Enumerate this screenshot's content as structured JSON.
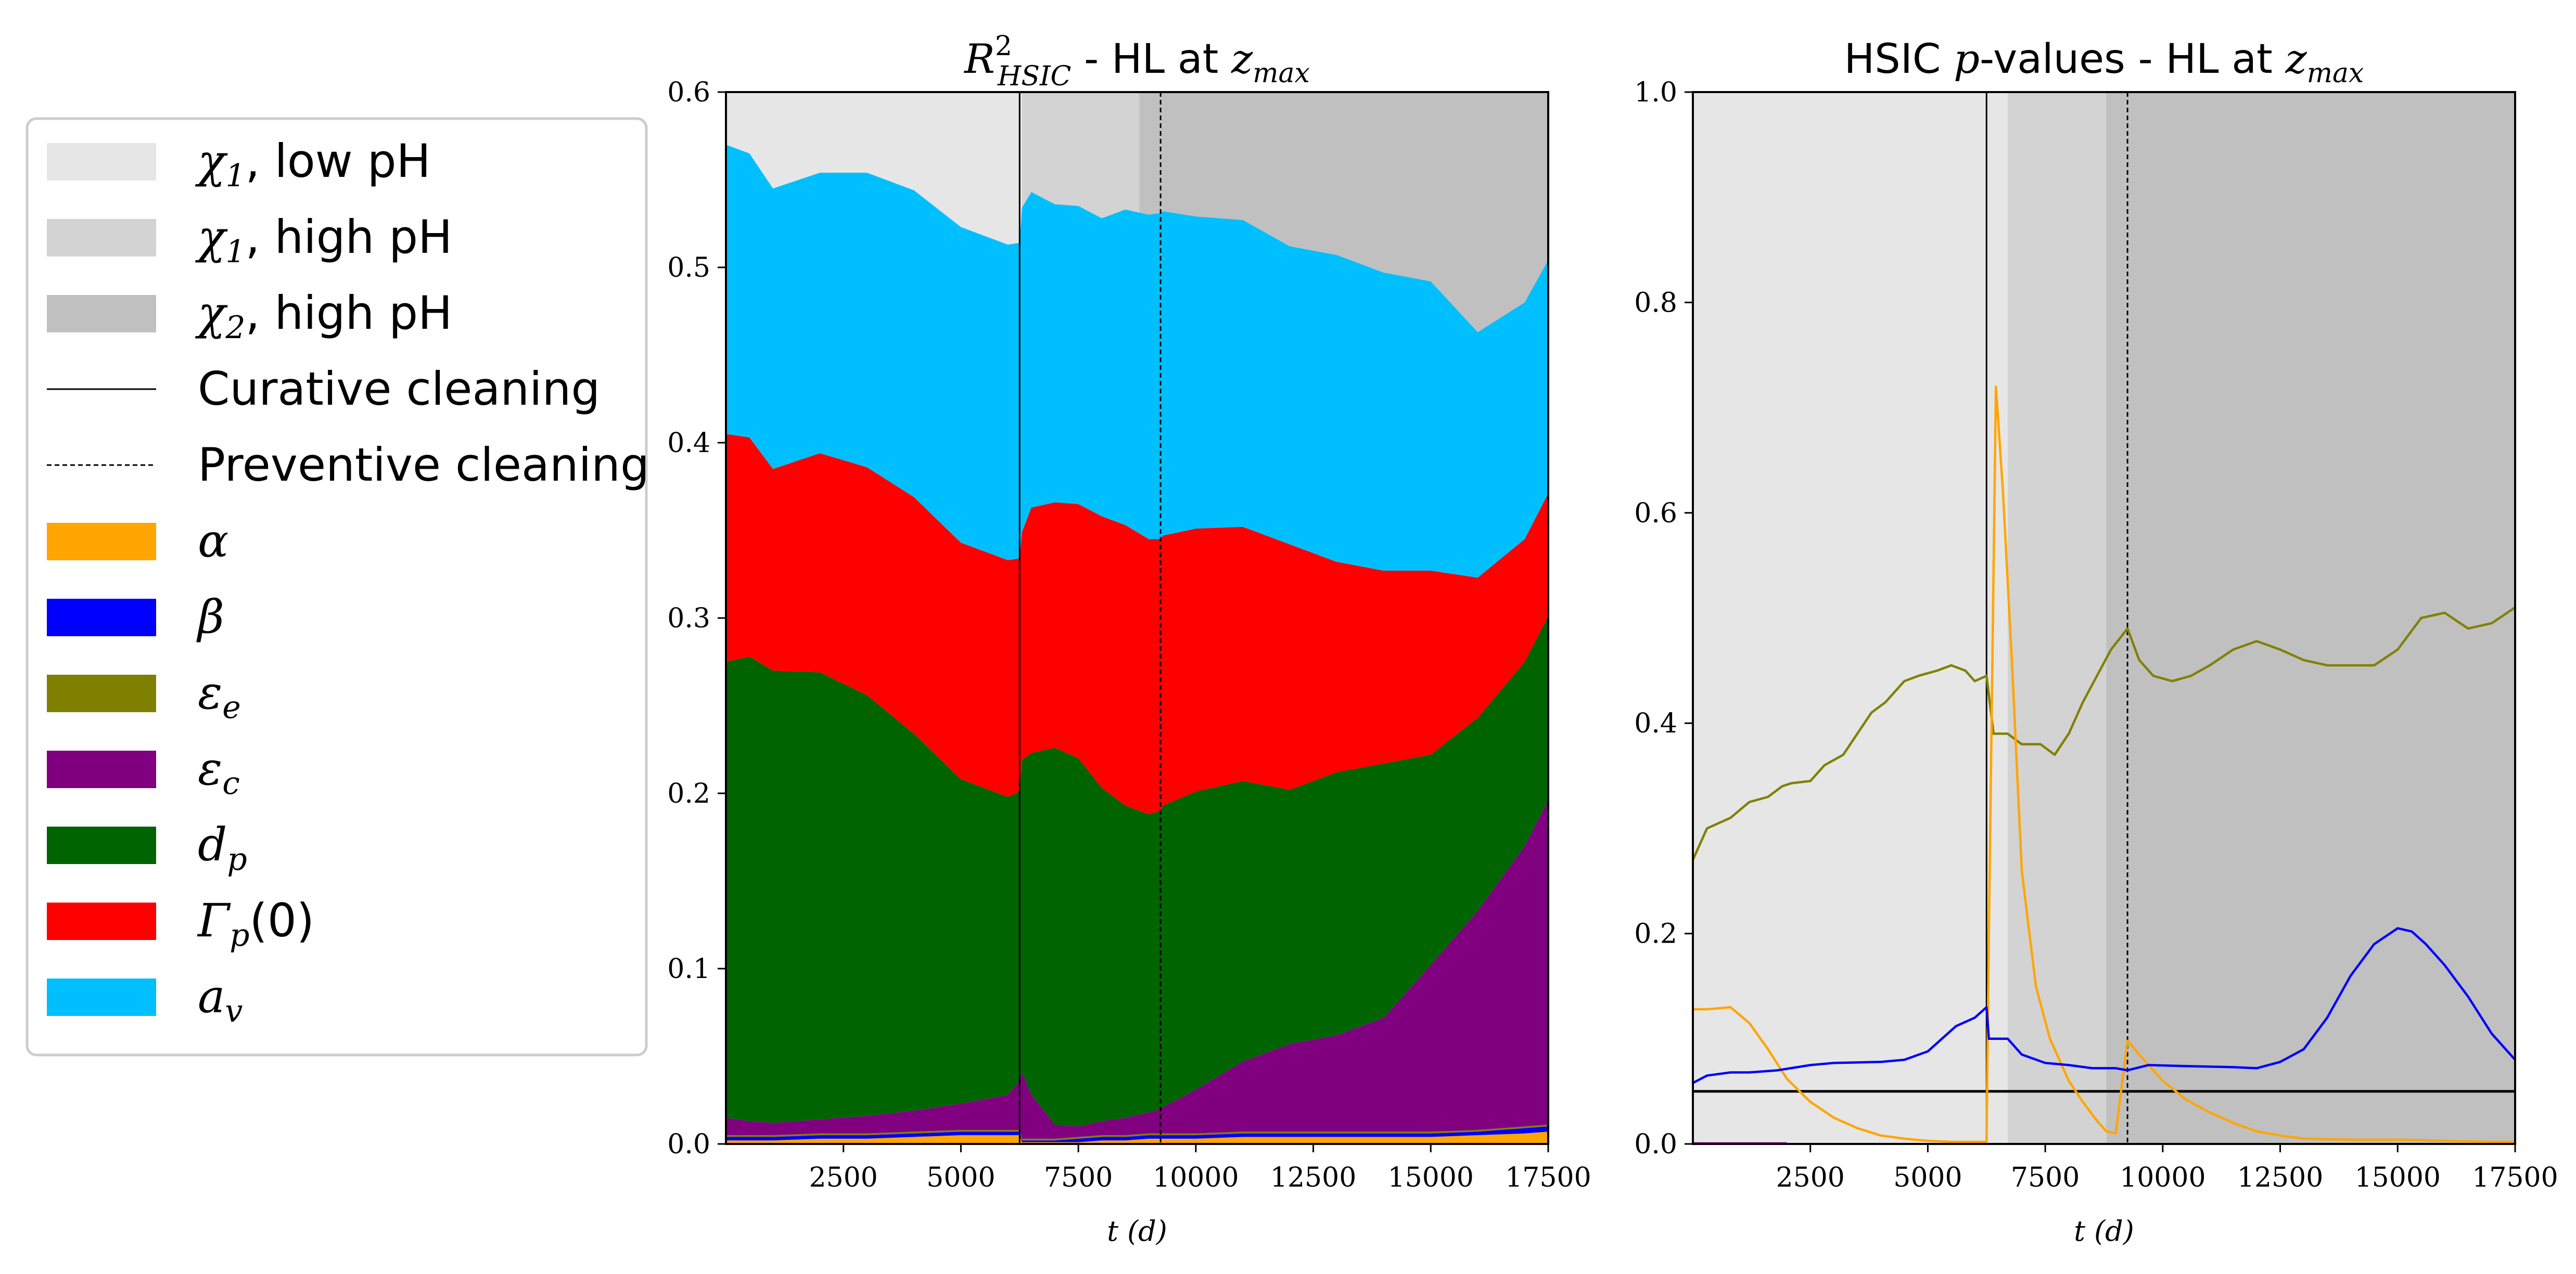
{
  "colors": {
    "alpha": "#ffa500",
    "beta": "#0000ff",
    "eps_e": "#808000",
    "eps_c": "#800080",
    "d_p": "#006400",
    "gamma_p": "#ff0000",
    "a_v": "#00bfff",
    "region_chi1_low": "#e6e6e6",
    "region_chi1_high": "#d3d3d3",
    "region_chi2_high": "#c0c0c0",
    "threshold": "#000000"
  },
  "legend": {
    "entries": [
      {
        "key": "chi1_low",
        "symbol": "χ",
        "sub": "1",
        "rest": ", low pH",
        "kind": "patch",
        "color": "#e6e6e6"
      },
      {
        "key": "chi1_high",
        "symbol": "χ",
        "sub": "1",
        "rest": ", high pH",
        "kind": "patch",
        "color": "#d3d3d3"
      },
      {
        "key": "chi2_high",
        "symbol": "χ",
        "sub": "2",
        "rest": ", high pH",
        "kind": "patch",
        "color": "#c0c0c0"
      },
      {
        "key": "curative",
        "text": "Curative cleaning",
        "kind": "solid-line"
      },
      {
        "key": "preventive",
        "text": "Preventive cleaning",
        "kind": "dashed-line"
      },
      {
        "key": "alpha",
        "symbol": "α",
        "sub": "",
        "rest": "",
        "kind": "patch",
        "color": "#ffa500"
      },
      {
        "key": "beta",
        "symbol": "β",
        "sub": "",
        "rest": "",
        "kind": "patch",
        "color": "#0000ff"
      },
      {
        "key": "eps_e",
        "symbol": "ε",
        "sub": "e",
        "rest": "",
        "kind": "patch",
        "color": "#808000"
      },
      {
        "key": "eps_c",
        "symbol": "ε",
        "sub": "c",
        "rest": "",
        "kind": "patch",
        "color": "#800080"
      },
      {
        "key": "d_p",
        "symbol": "d",
        "sub": "p",
        "rest": "",
        "kind": "patch",
        "color": "#006400"
      },
      {
        "key": "gamma_p",
        "symbol": "Γ",
        "sub": "p",
        "rest": "(0)",
        "kind": "patch",
        "color": "#ff0000"
      },
      {
        "key": "a_v",
        "symbol": "a",
        "sub": "v",
        "rest": "",
        "kind": "patch",
        "color": "#00bfff"
      }
    ]
  },
  "chart_data": [
    {
      "type": "area",
      "title": {
        "main": "R",
        "sup": "2",
        "sub": "HSIC",
        "rest": " - HL at ",
        "var": "z",
        "var_sub": "max"
      },
      "xlabel": "t (d)",
      "ylabel": "",
      "xlim": [
        0,
        17500
      ],
      "ylim": [
        0,
        0.6
      ],
      "xticks": [
        2500,
        5000,
        7500,
        10000,
        12500,
        15000,
        17500
      ],
      "yticks": [
        0.0,
        0.1,
        0.2,
        0.3,
        0.4,
        0.5,
        0.6
      ],
      "ytick_labels": [
        "0.0",
        "0.1",
        "0.2",
        "0.3",
        "0.4",
        "0.5",
        "0.6"
      ],
      "regions": [
        {
          "name": "chi1_low",
          "from": 0,
          "to": 6300
        },
        {
          "name": "chi1_high",
          "from": 6300,
          "to": 8800
        },
        {
          "name": "chi2_high",
          "from": 8800,
          "to": 17500
        }
      ],
      "curative_cleaning_x": 6250,
      "preventive_cleaning_x": 9250,
      "x": [
        0,
        500,
        1000,
        2000,
        3000,
        4000,
        5000,
        6000,
        6250,
        6300,
        6500,
        7000,
        7500,
        8000,
        8500,
        9000,
        9250,
        9300,
        10000,
        11000,
        12000,
        13000,
        14000,
        15000,
        16000,
        17000,
        17500
      ],
      "series": [
        {
          "key": "alpha",
          "values": [
            0.002,
            0.002,
            0.002,
            0.003,
            0.003,
            0.004,
            0.005,
            0.005,
            0.005,
            0.001,
            0.001,
            0.001,
            0.001,
            0.002,
            0.002,
            0.003,
            0.003,
            0.003,
            0.003,
            0.004,
            0.004,
            0.004,
            0.004,
            0.004,
            0.005,
            0.006,
            0.007
          ]
        },
        {
          "key": "beta",
          "values": [
            0.002,
            0.002,
            0.002,
            0.002,
            0.002,
            0.002,
            0.002,
            0.002,
            0.002,
            0.001,
            0.001,
            0.001,
            0.002,
            0.002,
            0.002,
            0.002,
            0.002,
            0.002,
            0.002,
            0.002,
            0.002,
            0.002,
            0.002,
            0.002,
            0.002,
            0.003,
            0.003
          ]
        },
        {
          "key": "eps_e",
          "values": [
            0.001,
            0.001,
            0.001,
            0.001,
            0.001,
            0.001,
            0.001,
            0.001,
            0.001,
            0.001,
            0.001,
            0.001,
            0.001,
            0.001,
            0.001,
            0.001,
            0.001,
            0.001,
            0.001,
            0.001,
            0.001,
            0.001,
            0.001,
            0.001,
            0.001,
            0.001,
            0.001
          ]
        },
        {
          "key": "eps_c",
          "values": [
            0.01,
            0.008,
            0.007,
            0.008,
            0.01,
            0.012,
            0.015,
            0.02,
            0.028,
            0.038,
            0.025,
            0.008,
            0.006,
            0.008,
            0.01,
            0.012,
            0.014,
            0.015,
            0.025,
            0.04,
            0.05,
            0.055,
            0.065,
            0.095,
            0.125,
            0.16,
            0.185
          ]
        },
        {
          "key": "d_p",
          "values": [
            0.26,
            0.265,
            0.258,
            0.255,
            0.24,
            0.215,
            0.185,
            0.17,
            0.165,
            0.178,
            0.195,
            0.215,
            0.21,
            0.19,
            0.178,
            0.17,
            0.17,
            0.172,
            0.17,
            0.16,
            0.145,
            0.15,
            0.145,
            0.12,
            0.11,
            0.105,
            0.105
          ]
        },
        {
          "key": "gamma_p",
          "values": [
            0.13,
            0.125,
            0.115,
            0.125,
            0.13,
            0.135,
            0.135,
            0.135,
            0.133,
            0.13,
            0.14,
            0.14,
            0.145,
            0.155,
            0.16,
            0.157,
            0.155,
            0.154,
            0.15,
            0.145,
            0.14,
            0.12,
            0.11,
            0.105,
            0.08,
            0.07,
            0.07
          ]
        },
        {
          "key": "a_v",
          "values": [
            0.165,
            0.162,
            0.16,
            0.16,
            0.168,
            0.175,
            0.18,
            0.18,
            0.18,
            0.185,
            0.18,
            0.17,
            0.17,
            0.17,
            0.18,
            0.185,
            0.186,
            0.185,
            0.178,
            0.175,
            0.17,
            0.175,
            0.17,
            0.165,
            0.14,
            0.135,
            0.133
          ]
        }
      ]
    },
    {
      "type": "line",
      "title": {
        "main": "HSIC ",
        "var": "p",
        "rest": "-values - HL at ",
        "var2": "z",
        "var2_sub": "max"
      },
      "xlabel": "t (d)",
      "ylabel": "",
      "xlim": [
        0,
        17500
      ],
      "ylim": [
        0,
        1.0
      ],
      "xticks": [
        2500,
        5000,
        7500,
        10000,
        12500,
        15000,
        17500
      ],
      "yticks": [
        0.0,
        0.2,
        0.4,
        0.6,
        0.8,
        1.0
      ],
      "ytick_labels": [
        "0.0",
        "0.2",
        "0.4",
        "0.6",
        "0.8",
        "1.0"
      ],
      "regions": [
        {
          "name": "chi1_low",
          "from": 0,
          "to": 6700
        },
        {
          "name": "chi1_high",
          "from": 6700,
          "to": 8800
        },
        {
          "name": "chi2_high",
          "from": 8800,
          "to": 17500
        }
      ],
      "curative_cleaning_x": 6250,
      "preventive_cleaning_x": 9250,
      "threshold": 0.05,
      "series": [
        {
          "key": "eps_e",
          "x": [
            0,
            300,
            800,
            1200,
            1600,
            1900,
            2100,
            2500,
            2800,
            3200,
            3500,
            3800,
            4100,
            4500,
            4800,
            5200,
            5500,
            5800,
            6000,
            6250,
            6400,
            6700,
            7000,
            7400,
            7700,
            8000,
            8300,
            8600,
            8900,
            9250,
            9500,
            9800,
            10200,
            10600,
            11000,
            11500,
            12000,
            12500,
            13000,
            13500,
            14000,
            14500,
            15000,
            15500,
            16000,
            16500,
            17000,
            17500
          ],
          "values": [
            0.27,
            0.3,
            0.31,
            0.325,
            0.33,
            0.34,
            0.343,
            0.345,
            0.36,
            0.37,
            0.39,
            0.41,
            0.42,
            0.44,
            0.445,
            0.45,
            0.455,
            0.45,
            0.44,
            0.445,
            0.39,
            0.39,
            0.38,
            0.38,
            0.37,
            0.39,
            0.42,
            0.445,
            0.47,
            0.49,
            0.46,
            0.445,
            0.44,
            0.445,
            0.455,
            0.47,
            0.478,
            0.47,
            0.46,
            0.455,
            0.455,
            0.455,
            0.47,
            0.5,
            0.505,
            0.49,
            0.495,
            0.51
          ]
        },
        {
          "key": "eps_c",
          "x": [
            0,
            2000
          ],
          "values": [
            0.0005,
            0.0005
          ]
        },
        {
          "key": "alpha",
          "x": [
            0,
            300,
            800,
            1200,
            1600,
            2000,
            2500,
            3000,
            3500,
            4000,
            4500,
            5000,
            5500,
            6000,
            6250,
            6300,
            6450,
            6600,
            6800,
            7000,
            7300,
            7600,
            8000,
            8300,
            8600,
            8800,
            9000,
            9250,
            9500,
            10000,
            10500,
            11000,
            11500,
            12000,
            12500,
            13000,
            14000,
            15000,
            16000,
            17000,
            17500
          ],
          "values": [
            0.128,
            0.128,
            0.13,
            0.115,
            0.09,
            0.062,
            0.04,
            0.025,
            0.015,
            0.008,
            0.005,
            0.003,
            0.002,
            0.002,
            0.002,
            0.2,
            0.72,
            0.62,
            0.45,
            0.26,
            0.15,
            0.1,
            0.06,
            0.04,
            0.022,
            0.012,
            0.01,
            0.098,
            0.085,
            0.06,
            0.042,
            0.03,
            0.02,
            0.012,
            0.008,
            0.005,
            0.004,
            0.004,
            0.003,
            0.002,
            0.002
          ]
        },
        {
          "key": "beta",
          "x": [
            0,
            300,
            800,
            1200,
            1800,
            2500,
            3000,
            4000,
            4500,
            5000,
            5300,
            5600,
            6000,
            6250,
            6300,
            6700,
            7000,
            7500,
            8000,
            8500,
            9000,
            9250,
            9700,
            10500,
            11500,
            12000,
            12500,
            13000,
            13500,
            14000,
            14500,
            15000,
            15300,
            15600,
            16000,
            16500,
            17000,
            17500
          ],
          "values": [
            0.058,
            0.065,
            0.068,
            0.068,
            0.07,
            0.075,
            0.077,
            0.078,
            0.08,
            0.088,
            0.1,
            0.112,
            0.12,
            0.13,
            0.1,
            0.1,
            0.085,
            0.077,
            0.075,
            0.072,
            0.072,
            0.07,
            0.075,
            0.074,
            0.073,
            0.072,
            0.078,
            0.09,
            0.12,
            0.16,
            0.19,
            0.205,
            0.202,
            0.19,
            0.17,
            0.14,
            0.105,
            0.08
          ]
        }
      ]
    }
  ]
}
